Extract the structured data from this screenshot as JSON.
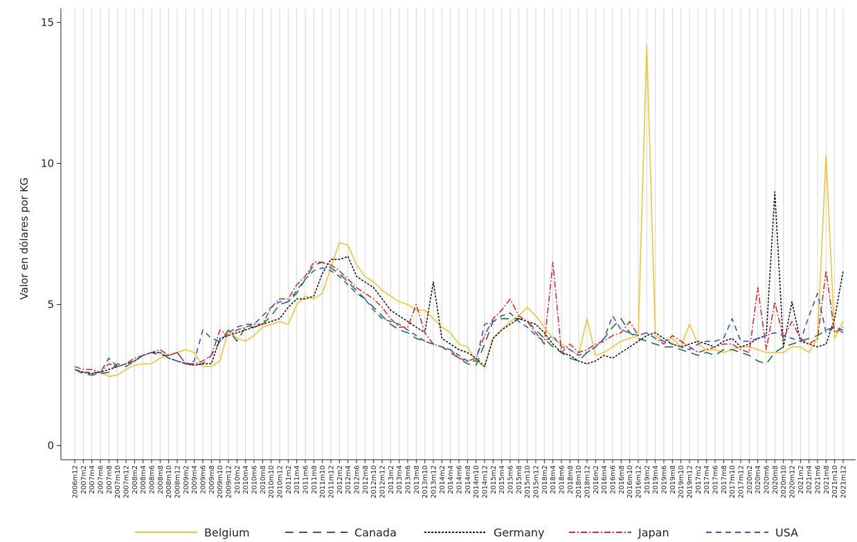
{
  "chart_data": {
    "type": "line",
    "ylabel": "Valor en dólares por KG",
    "categories": [
      "2006m12",
      "2007m2",
      "2007m4",
      "2007m6",
      "2007m8",
      "2007m10",
      "2007m12",
      "2008m2",
      "2008m4",
      "2008m6",
      "2008m8",
      "2008m10",
      "2008m12",
      "2009m2",
      "2009m4",
      "2009m6",
      "2009m8",
      "2009m10",
      "2009m12",
      "2010m2",
      "2010m4",
      "2010m6",
      "2010m8",
      "2010m10",
      "2010m12",
      "2011m2",
      "2011m4",
      "2011m6",
      "2011m8",
      "2011m10",
      "2011m12",
      "2012m2",
      "2012m4",
      "2012m6",
      "2012m8",
      "2012m10",
      "2012m12",
      "2013m2",
      "2013m4",
      "2013m6",
      "2013m8",
      "2013m10",
      "2013m12",
      "2014m2",
      "2014m4",
      "2014m6",
      "2014m8",
      "2014m10",
      "2014m12",
      "2015m2",
      "2015m4",
      "2015m6",
      "2015m8",
      "2015m10",
      "2015m12",
      "2018m2",
      "2018m4",
      "2018m6",
      "2018m8",
      "2018m10",
      "2018m12",
      "2016m2",
      "2016m4",
      "2016m6",
      "2016m8",
      "2016m10",
      "2016m12",
      "2019m2",
      "2019m4",
      "2019m6",
      "2019m8",
      "2019m10",
      "2019m12",
      "2017m2",
      "2017m4",
      "2017m6",
      "2017m8",
      "2017m10",
      "2017m12",
      "2020m2",
      "2020m4",
      "2020m6",
      "2020m8",
      "2020m10",
      "2020m12",
      "2021m2",
      "2021m4",
      "2021m6",
      "2021m8",
      "2021m10",
      "2021m12"
    ],
    "series": [
      {
        "name": "Belgium",
        "color": "#f4c430",
        "dash": "none",
        "values": [
          2.7,
          2.6,
          2.55,
          2.6,
          2.45,
          2.5,
          2.7,
          2.85,
          2.9,
          2.9,
          3.1,
          3.2,
          3.3,
          3.4,
          3.3,
          2.8,
          2.8,
          3.0,
          4.1,
          3.8,
          3.7,
          3.9,
          4.2,
          4.3,
          4.4,
          4.3,
          5.0,
          5.3,
          5.2,
          5.4,
          6.3,
          7.2,
          7.1,
          6.4,
          6.0,
          5.8,
          5.5,
          5.3,
          5.1,
          5.0,
          4.8,
          4.8,
          4.5,
          4.2,
          4.0,
          3.6,
          3.5,
          3.0,
          2.8,
          3.8,
          4.1,
          4.4,
          4.6,
          4.9,
          4.6,
          4.2,
          3.8,
          3.6,
          3.4,
          3.2,
          4.5,
          3.2,
          3.3,
          3.5,
          3.7,
          3.8,
          3.9,
          14.2,
          3.9,
          3.7,
          3.8,
          3.5,
          4.3,
          3.6,
          3.4,
          3.4,
          3.3,
          3.4,
          3.5,
          3.5,
          3.4,
          3.3,
          3.3,
          3.3,
          3.5,
          3.5,
          3.3,
          3.8,
          10.3,
          3.8,
          4.4
        ]
      },
      {
        "name": "Canada",
        "color": "#1b6e3d",
        "dash": "12 8",
        "values": [
          2.7,
          2.55,
          2.5,
          2.55,
          2.6,
          2.9,
          2.8,
          3.0,
          3.2,
          3.3,
          3.2,
          3.2,
          3.3,
          2.9,
          2.85,
          2.9,
          3.2,
          3.7,
          4.1,
          3.7,
          4.2,
          4.2,
          4.3,
          4.6,
          5.0,
          5.1,
          5.4,
          5.9,
          6.4,
          6.5,
          6.3,
          6.1,
          5.8,
          5.5,
          5.2,
          4.9,
          4.6,
          4.3,
          4.1,
          4.0,
          3.8,
          3.7,
          3.6,
          3.5,
          3.3,
          3.1,
          2.9,
          2.85,
          3.6,
          4.4,
          4.5,
          4.5,
          4.5,
          4.4,
          4.1,
          3.8,
          3.5,
          3.3,
          3.1,
          3.0,
          3.3,
          3.5,
          3.8,
          4.2,
          4.5,
          4.0,
          3.8,
          3.7,
          3.6,
          3.5,
          3.5,
          3.4,
          3.3,
          3.2,
          3.3,
          3.2,
          3.4,
          3.4,
          3.3,
          3.2,
          3.0,
          2.9,
          3.3,
          3.5,
          3.6,
          3.7,
          3.8,
          3.9,
          4.1,
          4.2,
          4.0
        ]
      },
      {
        "name": "Germany",
        "color": "#111111",
        "dash": "3 2",
        "values": [
          2.7,
          2.6,
          2.55,
          2.6,
          2.7,
          2.8,
          2.9,
          3.0,
          3.2,
          3.3,
          3.3,
          3.1,
          3.0,
          2.9,
          2.85,
          2.9,
          2.9,
          3.8,
          3.9,
          4.0,
          4.1,
          4.2,
          4.3,
          4.4,
          4.5,
          4.9,
          5.2,
          5.2,
          5.3,
          6.1,
          6.6,
          6.6,
          6.7,
          6.0,
          5.8,
          5.6,
          5.2,
          4.8,
          4.6,
          4.4,
          4.2,
          4.0,
          5.8,
          3.8,
          3.6,
          3.4,
          3.3,
          3.1,
          2.8,
          3.8,
          4.1,
          4.3,
          4.5,
          4.4,
          4.3,
          4.0,
          3.6,
          3.3,
          3.2,
          3.0,
          2.9,
          3.0,
          3.2,
          3.1,
          3.3,
          3.5,
          3.7,
          3.9,
          4.0,
          3.8,
          3.6,
          3.5,
          3.6,
          3.7,
          3.6,
          3.5,
          3.7,
          3.8,
          3.5,
          3.6,
          3.8,
          3.9,
          9.0,
          3.5,
          5.1,
          3.7,
          3.6,
          3.5,
          3.6,
          4.5,
          6.2
        ]
      },
      {
        "name": "Japan",
        "color": "#e0262c",
        "dash": "9 3 2 3",
        "values": [
          2.8,
          2.7,
          2.7,
          2.6,
          2.9,
          2.8,
          2.9,
          3.1,
          3.2,
          3.3,
          3.4,
          3.2,
          3.3,
          2.9,
          2.9,
          3.0,
          3.2,
          4.1,
          3.9,
          4.1,
          4.2,
          4.3,
          4.3,
          4.9,
          5.2,
          5.2,
          5.7,
          6.0,
          6.5,
          6.5,
          6.4,
          6.2,
          5.9,
          5.6,
          5.4,
          5.2,
          4.9,
          4.5,
          4.2,
          4.2,
          5.0,
          4.0,
          3.6,
          3.5,
          3.4,
          3.1,
          3.0,
          3.1,
          3.9,
          4.5,
          4.8,
          5.2,
          4.6,
          4.4,
          4.0,
          3.6,
          6.5,
          3.3,
          3.6,
          3.3,
          3.4,
          3.6,
          3.7,
          3.9,
          4.0,
          4.4,
          3.9,
          4.0,
          3.8,
          3.6,
          3.9,
          3.7,
          3.5,
          3.3,
          3.4,
          3.5,
          3.6,
          3.6,
          3.4,
          3.3,
          5.6,
          3.4,
          5.1,
          3.8,
          4.4,
          3.8,
          3.6,
          3.8,
          6.2,
          4.0,
          4.2
        ]
      },
      {
        "name": "USA",
        "color": "#2b57c8",
        "dash": "8 6",
        "values": [
          2.7,
          2.6,
          2.6,
          2.6,
          3.1,
          2.8,
          2.9,
          3.0,
          3.2,
          3.3,
          3.3,
          3.1,
          3.0,
          2.9,
          3.0,
          4.1,
          3.8,
          3.7,
          4.0,
          4.2,
          4.3,
          4.3,
          4.6,
          4.9,
          5.1,
          5.1,
          5.5,
          5.9,
          6.2,
          6.3,
          6.2,
          6.0,
          5.7,
          5.4,
          5.2,
          4.8,
          4.5,
          4.4,
          4.3,
          4.1,
          3.9,
          3.7,
          3.6,
          3.5,
          3.4,
          3.2,
          3.0,
          3.0,
          4.3,
          4.4,
          4.6,
          4.7,
          4.4,
          4.2,
          3.9,
          3.7,
          3.9,
          3.5,
          3.4,
          3.2,
          3.3,
          3.5,
          3.8,
          4.6,
          4.1,
          4.0,
          3.9,
          4.0,
          3.8,
          3.7,
          3.6,
          3.5,
          3.4,
          3.6,
          3.7,
          3.7,
          3.8,
          4.5,
          3.7,
          3.7,
          3.8,
          3.9,
          4.0,
          3.9,
          3.8,
          3.7,
          4.6,
          5.4,
          4.0,
          4.2,
          4.1
        ]
      }
    ],
    "ylim": [
      -0.5,
      15.5
    ],
    "yticks": [
      0,
      5,
      10,
      15
    ],
    "grid": "x",
    "legend": "bottom"
  }
}
